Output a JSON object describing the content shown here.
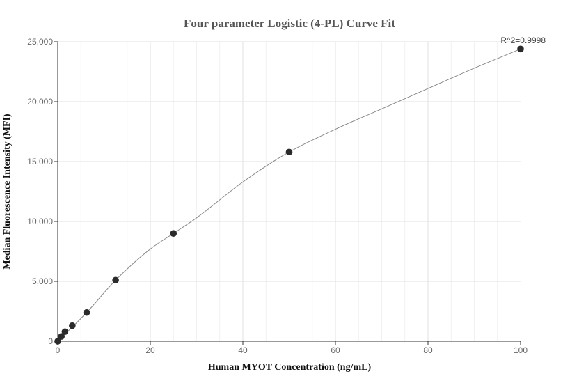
{
  "chart_data": {
    "type": "scatter",
    "title": "Four parameter Logistic (4-PL) Curve Fit",
    "xlabel": "Human MYOT Concentration (ng/mL)",
    "ylabel": "Median Fluorescence Intensity (MFI)",
    "xlim": [
      0,
      100
    ],
    "ylim": [
      0,
      25000
    ],
    "x_ticks": [
      0,
      20,
      40,
      60,
      80,
      100
    ],
    "y_ticks": [
      0,
      5000,
      10000,
      15000,
      20000,
      25000
    ],
    "x_tick_labels": [
      "0",
      "20",
      "40",
      "60",
      "80",
      "100"
    ],
    "y_tick_labels": [
      "0",
      "5,000",
      "10,000",
      "15,000",
      "20,000",
      "25,000"
    ],
    "grid": true,
    "annotation": "R^2=0.9998",
    "series": [
      {
        "points": [
          {
            "x": 0,
            "y": 0
          },
          {
            "x": 0.78,
            "y": 400
          },
          {
            "x": 1.56,
            "y": 800
          },
          {
            "x": 3.13,
            "y": 1300
          },
          {
            "x": 6.25,
            "y": 2400
          },
          {
            "x": 12.5,
            "y": 5100
          },
          {
            "x": 25,
            "y": 9000
          },
          {
            "x": 50,
            "y": 15800
          },
          {
            "x": 100,
            "y": 24400
          }
        ],
        "fit_curve": [
          {
            "x": 0,
            "y": 0
          },
          {
            "x": 6.25,
            "y": 2400
          },
          {
            "x": 12.5,
            "y": 5100
          },
          {
            "x": 20,
            "y": 7700
          },
          {
            "x": 25,
            "y": 9000
          },
          {
            "x": 30,
            "y": 10300
          },
          {
            "x": 40,
            "y": 13300
          },
          {
            "x": 50,
            "y": 15800
          },
          {
            "x": 60,
            "y": 17700
          },
          {
            "x": 70,
            "y": 19400
          },
          {
            "x": 80,
            "y": 21100
          },
          {
            "x": 90,
            "y": 22800
          },
          {
            "x": 100,
            "y": 24400
          }
        ],
        "marker_color": "#2b2b2b",
        "line_color": "#888888"
      }
    ]
  }
}
